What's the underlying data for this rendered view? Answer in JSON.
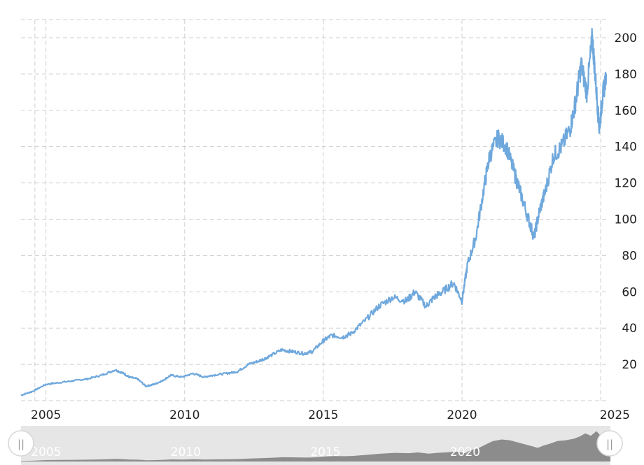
{
  "colors": {
    "line": "#6fa8dc",
    "grid": "#cfcfcf",
    "navigator_bg": "#e6e6e6",
    "navigator_area": "#8c8c8c"
  },
  "chart_data": {
    "type": "line",
    "title": "",
    "xlabel": "",
    "ylabel": "",
    "xlim": [
      2004.1,
      2025.2
    ],
    "ylim": [
      0,
      210
    ],
    "x_ticks": [
      "2005",
      "2010",
      "2015",
      "2020",
      "2025"
    ],
    "y_ticks": [
      "20",
      "40",
      "60",
      "80",
      "100",
      "120",
      "140",
      "160",
      "180",
      "200"
    ],
    "grid": true,
    "y_axis_side": "right",
    "series": [
      {
        "name": "",
        "x": [
          2004.1,
          2004.5,
          2005.0,
          2005.5,
          2006.0,
          2006.5,
          2007.0,
          2007.5,
          2007.8,
          2008.0,
          2008.3,
          2008.6,
          2008.9,
          2009.2,
          2009.5,
          2009.9,
          2010.3,
          2010.7,
          2011.0,
          2011.5,
          2011.9,
          2012.3,
          2012.7,
          2013.0,
          2013.5,
          2013.9,
          2014.3,
          2014.6,
          2015.0,
          2015.3,
          2015.7,
          2016.0,
          2016.5,
          2017.0,
          2017.5,
          2018.0,
          2018.3,
          2018.7,
          2019.0,
          2019.3,
          2019.7,
          2020.0,
          2020.2,
          2020.5,
          2020.8,
          2021.0,
          2021.3,
          2021.6,
          2021.9,
          2022.1,
          2022.4,
          2022.6,
          2022.8,
          2023.0,
          2023.3,
          2023.6,
          2023.9,
          2024.1,
          2024.3,
          2024.5,
          2024.7,
          2024.8,
          2024.95,
          2025.05,
          2025.2
        ],
        "y": [
          3,
          5,
          9,
          10,
          11,
          12,
          14,
          17,
          15,
          13,
          12,
          8,
          9,
          11,
          14,
          13,
          15,
          13,
          14,
          15,
          16,
          20,
          22,
          24,
          28,
          27,
          26,
          27,
          33,
          36,
          35,
          37,
          44,
          52,
          57,
          55,
          60,
          52,
          57,
          60,
          65,
          55,
          75,
          90,
          118,
          135,
          145,
          140,
          125,
          115,
          100,
          90,
          105,
          115,
          135,
          140,
          150,
          165,
          185,
          170,
          200,
          180,
          150,
          165,
          180
        ]
      }
    ]
  },
  "navigator": {
    "labels": [
      "2005",
      "2010",
      "2015",
      "2020"
    ],
    "left_handle": "||",
    "right_handle": "||"
  }
}
